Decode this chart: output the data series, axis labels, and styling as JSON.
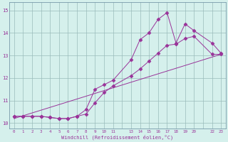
{
  "xlabel": "Windchill (Refroidissement éolien,°C)",
  "bg_color": "#d5f0ec",
  "line_color": "#993399",
  "grid_color": "#99bbbb",
  "xlim": [
    -0.5,
    23.5
  ],
  "ylim": [
    9.75,
    15.35
  ],
  "xtick_vals": [
    0,
    1,
    2,
    3,
    4,
    5,
    6,
    7,
    8,
    9,
    10,
    11,
    12,
    13,
    14,
    15,
    16,
    17,
    18,
    19,
    20,
    21,
    22,
    23
  ],
  "xtick_labels": [
    "0",
    "1",
    "2",
    "3",
    "4",
    "5",
    "6",
    "7",
    "8",
    "9",
    "10",
    "11",
    "",
    "13",
    "14",
    "15",
    "16",
    "17",
    "18",
    "19",
    "20",
    "",
    "22",
    "23"
  ],
  "yticks": [
    10,
    11,
    12,
    13,
    14,
    15
  ],
  "line1_x": [
    0,
    1,
    2,
    3,
    4,
    5,
    6,
    7,
    8,
    9,
    10,
    11,
    13,
    14,
    15,
    16,
    17,
    18,
    19,
    20,
    22,
    23
  ],
  "line1_y": [
    10.3,
    10.3,
    10.3,
    10.3,
    10.25,
    10.2,
    10.2,
    10.3,
    10.6,
    11.5,
    11.7,
    11.9,
    12.8,
    13.7,
    14.0,
    14.6,
    14.9,
    13.55,
    14.4,
    14.1,
    13.55,
    13.1
  ],
  "line2_x": [
    0,
    1,
    2,
    3,
    4,
    5,
    6,
    7,
    8,
    9,
    10,
    11,
    13,
    14,
    15,
    16,
    17,
    18,
    19,
    20,
    22,
    23
  ],
  "line2_y": [
    10.3,
    10.3,
    10.3,
    10.3,
    10.25,
    10.2,
    10.2,
    10.3,
    10.4,
    10.9,
    11.35,
    11.65,
    12.1,
    12.4,
    12.75,
    13.1,
    13.45,
    13.5,
    13.75,
    13.85,
    13.05,
    13.05
  ],
  "line3_x": [
    0,
    23
  ],
  "line3_y": [
    10.2,
    13.05
  ]
}
